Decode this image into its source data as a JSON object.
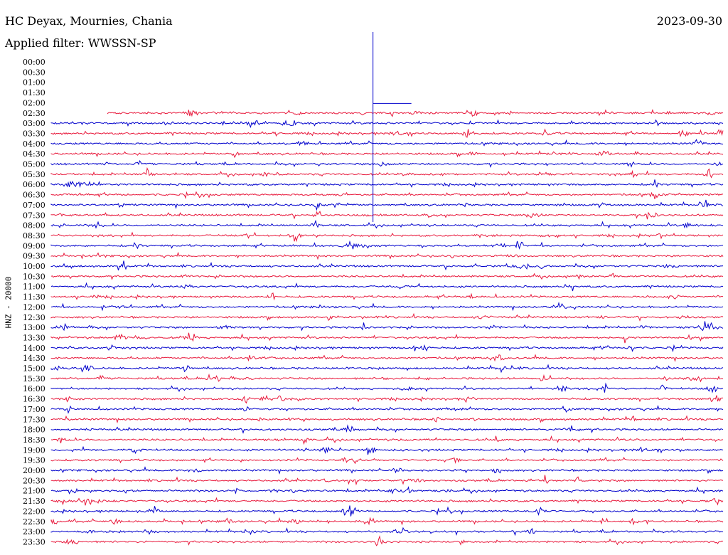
{
  "header": {
    "station": "HC Deyax, Mournies, Chania",
    "date": "2023-09-30",
    "filter": "Applied filter: WWSSN-SP"
  },
  "chart_data": {
    "type": "line",
    "ylabel": "HNZ - 20000",
    "colors": [
      "#0000cc",
      "#e8193c"
    ],
    "row_labels": [
      "00:00",
      "00:30",
      "01:00",
      "01:30",
      "02:00",
      "02:30",
      "03:00",
      "03:30",
      "04:00",
      "04:30",
      "05:00",
      "05:30",
      "06:00",
      "06:30",
      "07:00",
      "07:30",
      "08:00",
      "08:30",
      "09:00",
      "09:30",
      "10:00",
      "10:30",
      "11:00",
      "11:30",
      "12:00",
      "12:30",
      "13:00",
      "13:30",
      "14:00",
      "14:30",
      "15:00",
      "15:30",
      "16:00",
      "16:30",
      "17:00",
      "17:30",
      "18:00",
      "18:30",
      "19:00",
      "19:30",
      "20:00",
      "20:30",
      "21:00",
      "21:30",
      "22:00",
      "22:30",
      "23:00",
      "23:30"
    ],
    "record_start_fraction_0230": 0.084,
    "spike": {
      "row": "02:00",
      "x_fraction": 0.479
    }
  }
}
